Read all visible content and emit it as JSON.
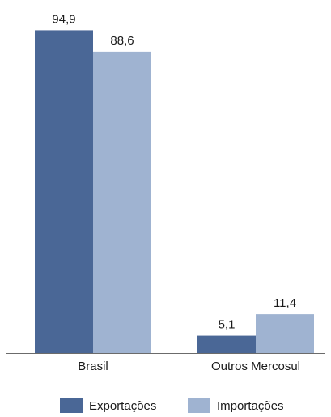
{
  "chart_data": {
    "type": "bar",
    "categories": [
      "Brasil",
      "Outros Mercosul"
    ],
    "series": [
      {
        "name": "Exportações",
        "values": [
          94.9,
          5.1
        ],
        "labels": [
          "94,9",
          "5,1"
        ],
        "color": "#4a6796"
      },
      {
        "name": "Importações",
        "values": [
          88.6,
          11.4
        ],
        "labels": [
          "88,6",
          "11,4"
        ],
        "color": "#9fb3d1"
      }
    ],
    "title": "",
    "xlabel": "",
    "ylabel": "",
    "ylim": [
      0,
      100
    ],
    "grid": false,
    "legend_position": "bottom"
  }
}
